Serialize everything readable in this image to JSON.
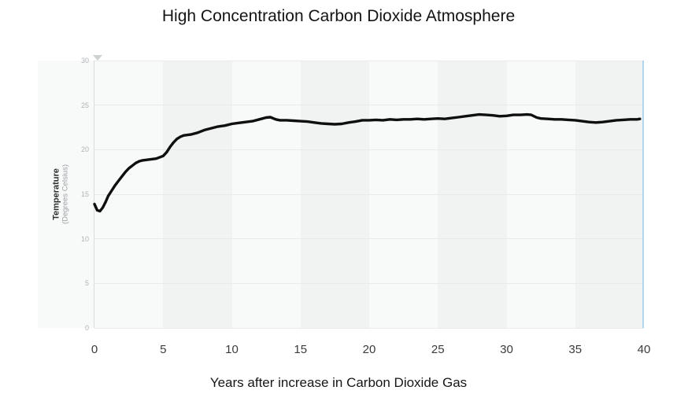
{
  "page": {
    "title": "High Concentration Carbon Dioxide Atmosphere"
  },
  "x_axis": {
    "title": "Years after increase in Carbon Dioxide Gas"
  },
  "y_axis": {
    "label_primary": "Temperature",
    "label_secondary": "(Degrees Celsius)"
  },
  "colors": {
    "band_light": "#f8f9f9",
    "band_dark": "#f1f2f2",
    "gridline": "#e9ebeb",
    "axis_line": "#d9dcdc",
    "cursor_blue": "#aed6ec",
    "series_line": "#0f0f0f",
    "y_tick_text": "#b0b4b6",
    "x_tick_text": "#3b3b3b",
    "axis_arrow": "#ced1d2"
  },
  "chart_data": {
    "type": "line",
    "title": "High Concentration Carbon Dioxide Atmosphere",
    "xlabel": "Years after increase in Carbon Dioxide Gas",
    "ylabel": "Temperature (Degrees Celsius)",
    "xlim": [
      0,
      40
    ],
    "ylim": [
      0,
      30
    ],
    "x_ticks": [
      0,
      5,
      10,
      15,
      20,
      25,
      30,
      35,
      40
    ],
    "y_ticks": [
      30,
      25,
      20,
      15,
      10,
      5,
      0
    ],
    "grid": "horizontal",
    "legend_position": "none",
    "background_bands": {
      "interval_years": 5,
      "pattern": "alternating, light on 0-5 then dark on 5-10, across 0-40"
    },
    "annotations": {
      "time_cursor_x": 40
    },
    "series": [
      {
        "name": "Temperature",
        "color": "#0f0f0f",
        "points": [
          [
            0,
            13.9
          ],
          [
            0.2,
            13.2
          ],
          [
            0.4,
            13.1
          ],
          [
            0.6,
            13.5
          ],
          [
            0.8,
            14.1
          ],
          [
            1,
            14.8
          ],
          [
            1.25,
            15.4
          ],
          [
            1.5,
            16.0
          ],
          [
            1.75,
            16.5
          ],
          [
            2,
            17.0
          ],
          [
            2.25,
            17.5
          ],
          [
            2.5,
            17.9
          ],
          [
            2.75,
            18.2
          ],
          [
            3,
            18.5
          ],
          [
            3.25,
            18.7
          ],
          [
            3.5,
            18.8
          ],
          [
            4,
            18.9
          ],
          [
            4.5,
            19.0
          ],
          [
            5,
            19.3
          ],
          [
            5.25,
            19.7
          ],
          [
            5.5,
            20.3
          ],
          [
            5.75,
            20.8
          ],
          [
            6,
            21.2
          ],
          [
            6.25,
            21.45
          ],
          [
            6.5,
            21.6
          ],
          [
            7,
            21.7
          ],
          [
            7.5,
            21.9
          ],
          [
            8,
            22.2
          ],
          [
            8.5,
            22.4
          ],
          [
            9,
            22.6
          ],
          [
            9.5,
            22.7
          ],
          [
            10,
            22.9
          ],
          [
            10.5,
            23.0
          ],
          [
            11,
            23.1
          ],
          [
            11.5,
            23.2
          ],
          [
            12,
            23.4
          ],
          [
            12.5,
            23.6
          ],
          [
            12.8,
            23.65
          ],
          [
            13.2,
            23.4
          ],
          [
            13.5,
            23.3
          ],
          [
            14,
            23.3
          ],
          [
            14.5,
            23.25
          ],
          [
            15,
            23.2
          ],
          [
            15.5,
            23.15
          ],
          [
            16,
            23.05
          ],
          [
            16.5,
            22.95
          ],
          [
            17,
            22.9
          ],
          [
            17.5,
            22.85
          ],
          [
            18,
            22.9
          ],
          [
            18.5,
            23.05
          ],
          [
            19,
            23.15
          ],
          [
            19.5,
            23.3
          ],
          [
            20,
            23.3
          ],
          [
            20.5,
            23.35
          ],
          [
            21,
            23.3
          ],
          [
            21.5,
            23.4
          ],
          [
            22,
            23.35
          ],
          [
            22.5,
            23.4
          ],
          [
            23,
            23.4
          ],
          [
            23.5,
            23.45
          ],
          [
            24,
            23.4
          ],
          [
            24.5,
            23.45
          ],
          [
            25,
            23.5
          ],
          [
            25.5,
            23.45
          ],
          [
            26,
            23.55
          ],
          [
            26.5,
            23.65
          ],
          [
            27,
            23.75
          ],
          [
            27.5,
            23.85
          ],
          [
            28,
            23.95
          ],
          [
            28.5,
            23.9
          ],
          [
            29,
            23.85
          ],
          [
            29.5,
            23.75
          ],
          [
            30,
            23.8
          ],
          [
            30.5,
            23.9
          ],
          [
            31,
            23.9
          ],
          [
            31.5,
            23.95
          ],
          [
            31.8,
            23.9
          ],
          [
            32.2,
            23.6
          ],
          [
            32.5,
            23.5
          ],
          [
            33,
            23.45
          ],
          [
            33.5,
            23.4
          ],
          [
            34,
            23.4
          ],
          [
            34.5,
            23.35
          ],
          [
            35,
            23.3
          ],
          [
            35.5,
            23.2
          ],
          [
            36,
            23.1
          ],
          [
            36.5,
            23.05
          ],
          [
            37,
            23.1
          ],
          [
            37.5,
            23.2
          ],
          [
            38,
            23.3
          ],
          [
            38.5,
            23.35
          ],
          [
            39,
            23.4
          ],
          [
            39.5,
            23.4
          ],
          [
            39.7,
            23.45
          ]
        ]
      }
    ]
  }
}
